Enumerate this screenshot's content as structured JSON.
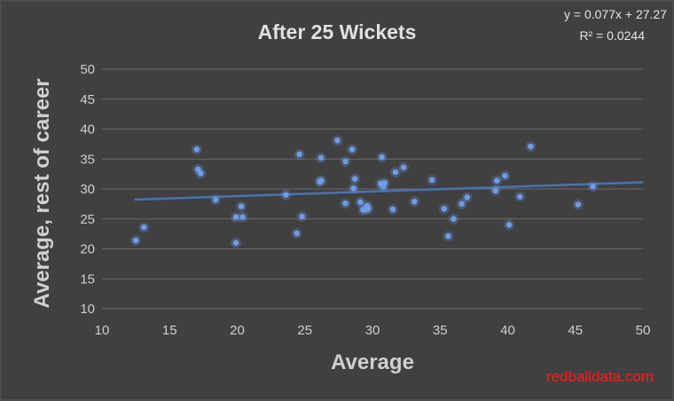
{
  "chart_data": {
    "type": "scatter",
    "title": "After 25 Wickets",
    "xlabel": "Average",
    "ylabel": "Average, rest of career",
    "xlim": [
      10,
      50
    ],
    "ylim": [
      10,
      50
    ],
    "xticks": [
      10,
      15,
      20,
      25,
      30,
      35,
      40,
      45,
      50
    ],
    "yticks": [
      10,
      15,
      20,
      25,
      30,
      35,
      40,
      45,
      50
    ],
    "grid": "horizontal",
    "trendline": {
      "slope": 0.077,
      "intercept": 27.27,
      "x_range": [
        12.4,
        50
      ],
      "equation_label": "y = 0.077x + 27.27",
      "r2_label": "R² = 0.0244"
    },
    "colors": {
      "point": "#6f9ce8",
      "trendline": "#4a72b0",
      "background": "#404040"
    },
    "points": [
      {
        "x": 12.5,
        "y": 21.4
      },
      {
        "x": 13.1,
        "y": 23.6
      },
      {
        "x": 17.0,
        "y": 36.6
      },
      {
        "x": 17.1,
        "y": 33.3
      },
      {
        "x": 17.3,
        "y": 32.6
      },
      {
        "x": 18.4,
        "y": 28.2
      },
      {
        "x": 19.9,
        "y": 25.3
      },
      {
        "x": 19.9,
        "y": 21.0
      },
      {
        "x": 20.3,
        "y": 27.1
      },
      {
        "x": 20.4,
        "y": 25.3
      },
      {
        "x": 23.6,
        "y": 29.0
      },
      {
        "x": 24.4,
        "y": 22.6
      },
      {
        "x": 24.6,
        "y": 35.8
      },
      {
        "x": 24.8,
        "y": 25.4
      },
      {
        "x": 26.2,
        "y": 35.2
      },
      {
        "x": 26.1,
        "y": 31.2
      },
      {
        "x": 26.2,
        "y": 31.4
      },
      {
        "x": 27.4,
        "y": 38.1
      },
      {
        "x": 28.0,
        "y": 34.6
      },
      {
        "x": 28.0,
        "y": 27.6
      },
      {
        "x": 28.5,
        "y": 36.6
      },
      {
        "x": 28.6,
        "y": 30.1
      },
      {
        "x": 28.7,
        "y": 31.7
      },
      {
        "x": 29.1,
        "y": 27.8
      },
      {
        "x": 29.3,
        "y": 26.5
      },
      {
        "x": 29.5,
        "y": 26.6
      },
      {
        "x": 29.6,
        "y": 27.2
      },
      {
        "x": 29.7,
        "y": 26.7
      },
      {
        "x": 30.6,
        "y": 30.9
      },
      {
        "x": 30.7,
        "y": 35.3
      },
      {
        "x": 30.8,
        "y": 30.4
      },
      {
        "x": 30.9,
        "y": 31.0
      },
      {
        "x": 31.5,
        "y": 26.6
      },
      {
        "x": 31.7,
        "y": 32.8
      },
      {
        "x": 32.3,
        "y": 33.6
      },
      {
        "x": 33.1,
        "y": 27.9
      },
      {
        "x": 34.4,
        "y": 31.5
      },
      {
        "x": 35.3,
        "y": 26.7
      },
      {
        "x": 35.6,
        "y": 22.1
      },
      {
        "x": 36.0,
        "y": 25.0
      },
      {
        "x": 36.6,
        "y": 27.5
      },
      {
        "x": 37.0,
        "y": 28.6
      },
      {
        "x": 39.1,
        "y": 29.7
      },
      {
        "x": 39.2,
        "y": 31.4
      },
      {
        "x": 39.8,
        "y": 32.2
      },
      {
        "x": 40.1,
        "y": 24.0
      },
      {
        "x": 40.9,
        "y": 28.7
      },
      {
        "x": 41.7,
        "y": 37.1
      },
      {
        "x": 45.2,
        "y": 27.4
      },
      {
        "x": 46.3,
        "y": 30.4
      }
    ]
  },
  "watermark": "redballdata.com"
}
